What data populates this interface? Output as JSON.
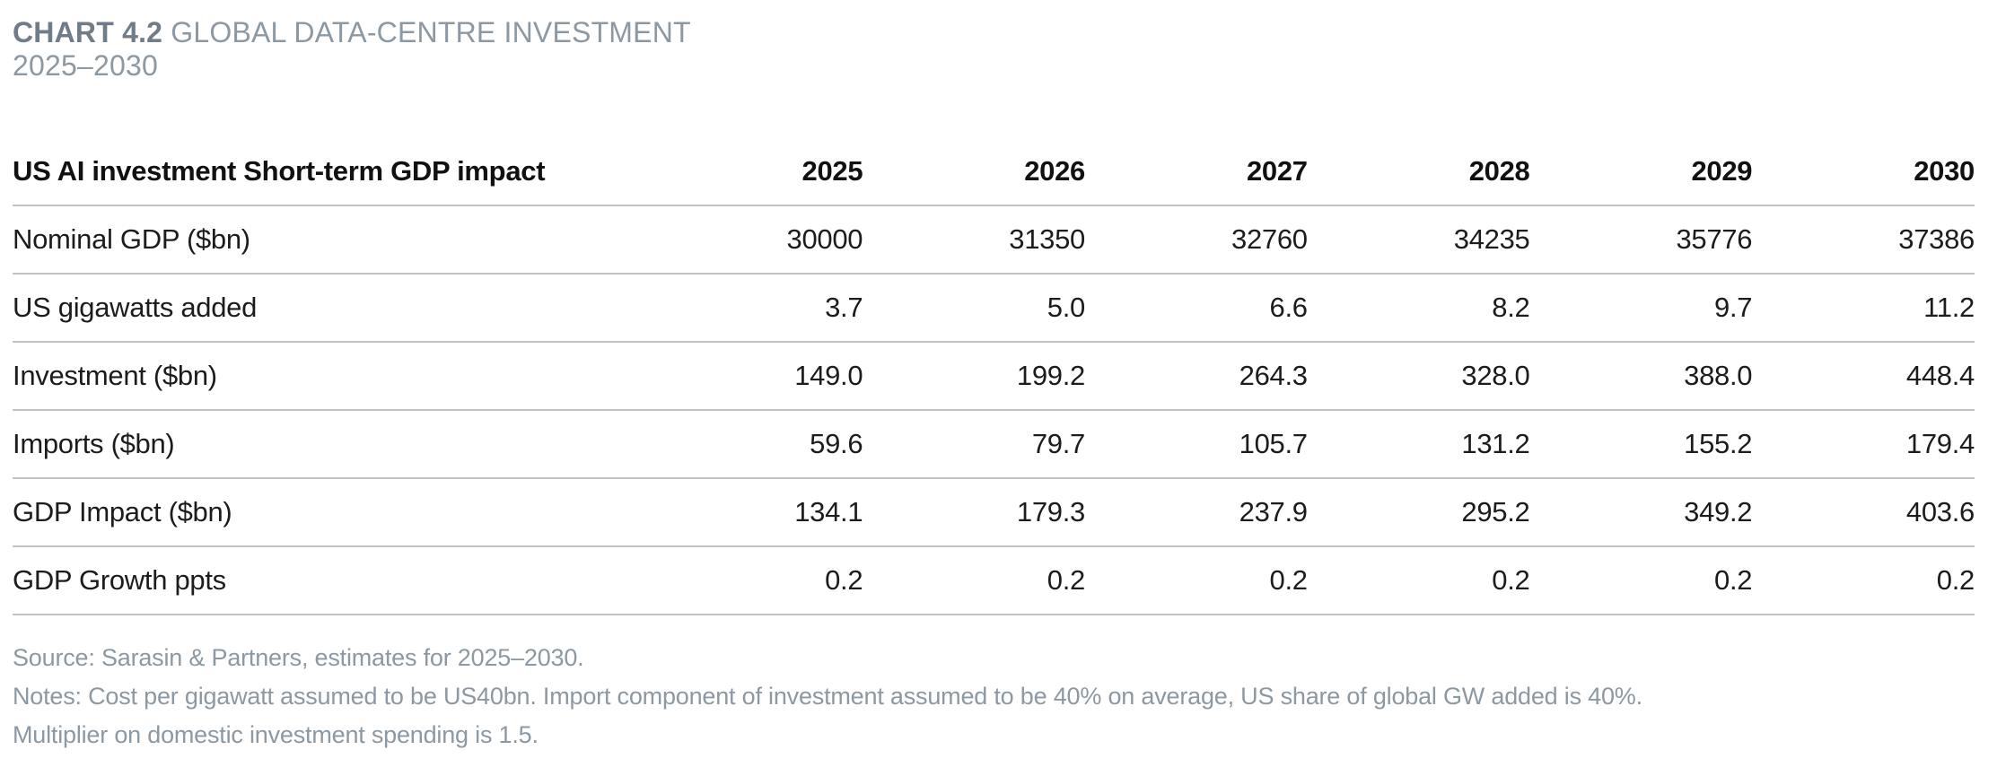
{
  "header": {
    "chart_label": "CHART 4.2",
    "title": "GLOBAL DATA-CENTRE INVESTMENT",
    "subtitle": "2025–2030"
  },
  "chart_data": {
    "type": "table",
    "title": "CHART 4.2 GLOBAL DATA-CENTRE INVESTMENT 2025–2030",
    "columns": [
      "US AI investment Short-term GDP impact",
      "2025",
      "2026",
      "2027",
      "2028",
      "2029",
      "2030"
    ],
    "rows": [
      {
        "label": "Nominal GDP ($bn)",
        "values": [
          "30000",
          "31350",
          "32760",
          "34235",
          "35776",
          "37386"
        ]
      },
      {
        "label": "US gigawatts added",
        "values": [
          "3.7",
          "5.0",
          "6.6",
          "8.2",
          "9.7",
          "11.2"
        ]
      },
      {
        "label": "Investment ($bn)",
        "values": [
          "149.0",
          "199.2",
          "264.3",
          "328.0",
          "388.0",
          "448.4"
        ]
      },
      {
        "label": "Imports ($bn)",
        "values": [
          "59.6",
          "79.7",
          "105.7",
          "131.2",
          "155.2",
          "179.4"
        ]
      },
      {
        "label": "GDP Impact ($bn)",
        "values": [
          "134.1",
          "179.3",
          "237.9",
          "295.2",
          "349.2",
          "403.6"
        ]
      },
      {
        "label": "GDP Growth ppts",
        "values": [
          "0.2",
          "0.2",
          "0.2",
          "0.2",
          "0.2",
          "0.2"
        ]
      }
    ],
    "layout": {
      "grid": "horizontal-rules-only",
      "numeric_alignment": "right"
    }
  },
  "footnotes": {
    "source": "Source: Sarasin & Partners, estimates for 2025–2030.",
    "notes": "Notes: Cost per gigawatt assumed to be US40bn. Import component of investment assumed to be 40% on average, US share of global GW added is 40%.",
    "notes_line2": "Multiplier on domestic investment spending is 1.5."
  },
  "colors": {
    "title_bold": "#707D89",
    "muted_text": "#8C98A2",
    "body_text": "#1C1C1C",
    "rule": "#C3C3C3",
    "background": "#FFFFFF"
  }
}
